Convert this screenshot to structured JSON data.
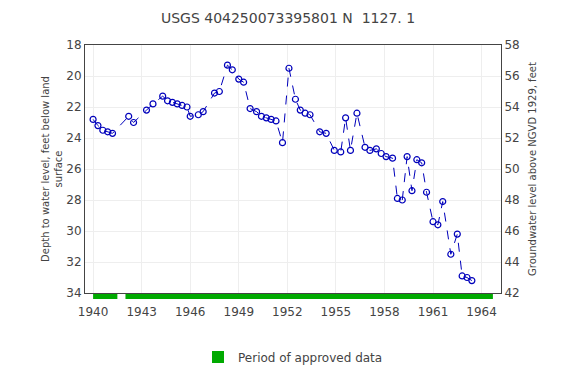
{
  "chart_data": {
    "type": "line",
    "title": "USGS 404250073395801 N  1127. 1",
    "y_label": "Depth to water level, feet below land\nsurface",
    "y2_label": "Groundwater level above NGVD 1929, feet",
    "x": [
      1940.0,
      1940.3,
      1940.6,
      1940.9,
      1941.2,
      1942.2,
      1942.5,
      1943.3,
      1943.7,
      1944.3,
      1944.6,
      1944.9,
      1945.2,
      1945.5,
      1945.8,
      1946.0,
      1946.5,
      1946.8,
      1947.5,
      1947.8,
      1948.3,
      1948.6,
      1949.0,
      1949.3,
      1949.7,
      1950.1,
      1950.4,
      1950.7,
      1951.0,
      1951.3,
      1951.7,
      1952.1,
      1952.5,
      1952.8,
      1953.1,
      1953.4,
      1954.0,
      1954.4,
      1954.9,
      1955.3,
      1955.6,
      1955.9,
      1956.3,
      1956.8,
      1957.1,
      1957.5,
      1957.8,
      1958.1,
      1958.5,
      1958.8,
      1959.1,
      1959.4,
      1959.7,
      1960.0,
      1960.3,
      1960.6,
      1961.0,
      1961.3,
      1961.6,
      1962.1,
      1962.5,
      1962.8,
      1963.1,
      1963.4
    ],
    "series": [
      {
        "color": "#0000bb",
        "marker": "open circle",
        "line_style": "dashed",
        "values": [
          22.8,
          23.2,
          23.5,
          23.6,
          23.7,
          22.6,
          23.0,
          22.2,
          21.8,
          21.3,
          21.6,
          21.7,
          21.8,
          21.9,
          22.0,
          22.6,
          22.5,
          22.3,
          21.1,
          21.0,
          19.3,
          19.6,
          20.2,
          20.4,
          22.1,
          22.3,
          22.6,
          22.7,
          22.8,
          22.9,
          24.3,
          19.5,
          21.5,
          22.2,
          22.4,
          22.5,
          23.6,
          23.7,
          24.8,
          24.9,
          22.7,
          24.8,
          22.4,
          24.6,
          24.8,
          24.7,
          25.0,
          25.2,
          25.3,
          27.9,
          28.0,
          25.2,
          27.4,
          25.4,
          25.6,
          27.5,
          29.4,
          29.6,
          28.1,
          31.5,
          30.2,
          32.9,
          33.0,
          33.2
        ]
      }
    ],
    "periods": {
      "name": "Period of approved data",
      "color": "#00aa00",
      "ranges": [
        [
          1940.0,
          1941.5
        ],
        [
          1942.0,
          1964.7
        ]
      ]
    },
    "xlim": [
      1939.5,
      1965.2
    ],
    "xticks": [
      1940,
      1943,
      1946,
      1949,
      1952,
      1955,
      1958,
      1961,
      1964
    ],
    "ylim": [
      34,
      18
    ],
    "yticks": [
      18,
      20,
      22,
      24,
      26,
      28,
      30,
      32,
      34
    ],
    "y2lim": [
      42,
      58
    ],
    "y2ticks": [
      58,
      56,
      54,
      52,
      50,
      48,
      46,
      44,
      42
    ],
    "grid": true
  }
}
